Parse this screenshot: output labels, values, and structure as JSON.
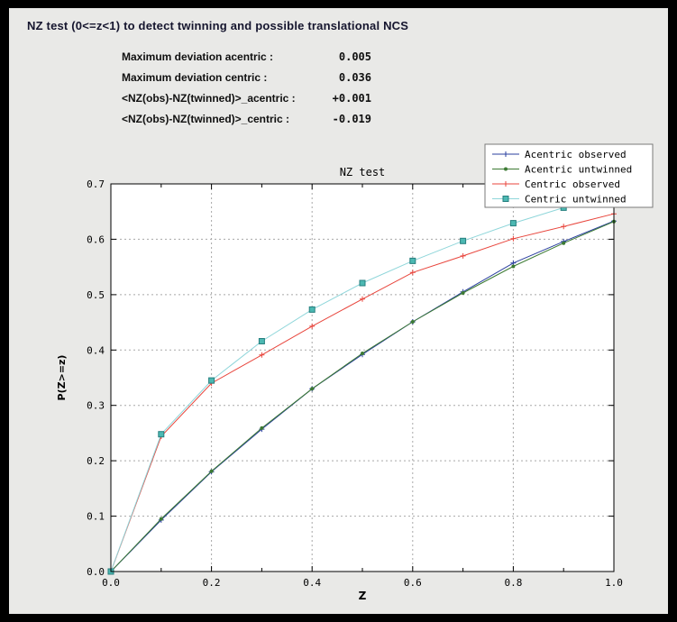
{
  "window": {
    "title": "NZ test (0<=z<1) to detect twinning and possible translational NCS"
  },
  "stats": {
    "rows": [
      {
        "label": "Maximum deviation acentric :",
        "value": "0.005"
      },
      {
        "label": "Maximum deviation centric :",
        "value": "0.036"
      },
      {
        "label": "<NZ(obs)-NZ(twinned)>_acentric :",
        "value": "+0.001"
      },
      {
        "label": "<NZ(obs)-NZ(twinned)>_centric :",
        "value": "-0.019"
      }
    ]
  },
  "chart_data": {
    "type": "line",
    "title": "NZ test",
    "xlabel": "Z",
    "ylabel": "P(Z>=z)",
    "xlim": [
      0.0,
      1.0
    ],
    "ylim": [
      0.0,
      0.7
    ],
    "xticks_labeled": [
      0.0,
      0.2,
      0.4,
      0.6,
      0.8,
      1.0
    ],
    "xticks_minor": [
      0.1,
      0.3,
      0.5,
      0.7,
      0.9
    ],
    "yticks": [
      0.0,
      0.1,
      0.2,
      0.3,
      0.4,
      0.5,
      0.6,
      0.7
    ],
    "grid": true,
    "legend_position": "top-right",
    "frame_color": "#000000",
    "grid_color": "#a8a8a8",
    "plot_bg": "#ffffff",
    "x": [
      0.0,
      0.1,
      0.2,
      0.3,
      0.4,
      0.5,
      0.6,
      0.7,
      0.8,
      0.9,
      1.0
    ],
    "series": [
      {
        "name": "Acentric observed",
        "color": "#2a3f9f",
        "marker": "plus",
        "values": [
          0.0,
          0.093,
          0.18,
          0.257,
          0.33,
          0.392,
          0.451,
          0.505,
          0.557,
          0.596,
          0.633
        ]
      },
      {
        "name": "Acentric untwinned",
        "color": "#3c7a33",
        "marker": "dot",
        "values": [
          0.0,
          0.095,
          0.181,
          0.259,
          0.33,
          0.394,
          0.451,
          0.503,
          0.551,
          0.593,
          0.632
        ]
      },
      {
        "name": "Centric observed",
        "color": "#e8453c",
        "marker": "plus",
        "values": [
          0.0,
          0.244,
          0.34,
          0.391,
          0.443,
          0.492,
          0.54,
          0.57,
          0.601,
          0.623,
          0.646
        ]
      },
      {
        "name": "Centric untwinned",
        "color": "#8fd6da",
        "marker": "square",
        "marker_fill": "#4cb8b2",
        "marker_edge": "#267f7f",
        "values": [
          0.0,
          0.248,
          0.345,
          0.416,
          0.473,
          0.521,
          0.561,
          0.597,
          0.629,
          0.657,
          0.683
        ]
      }
    ]
  }
}
